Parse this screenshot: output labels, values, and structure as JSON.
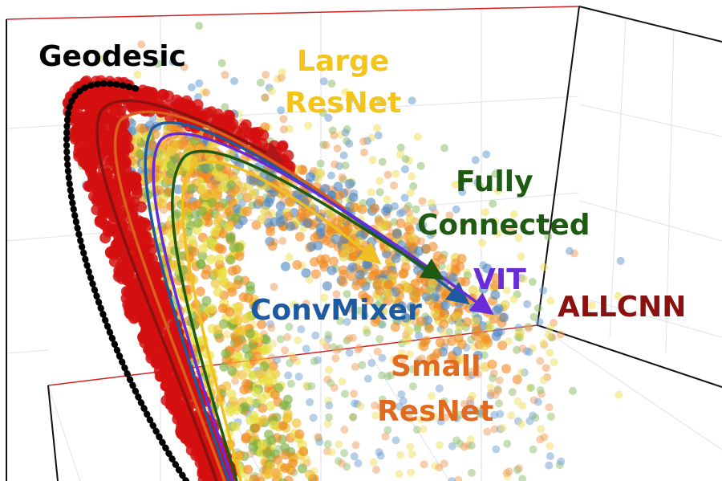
{
  "labels": {
    "geodesic": "Geodesic",
    "large_resnet": [
      "Large",
      "ResNet"
    ],
    "fully_connected": [
      "Fully",
      "Connected"
    ],
    "vit": "VIT",
    "convmixer": "ConvMixer",
    "allcnn": "ALLCNN",
    "small_resnet": [
      "Small",
      "ResNet"
    ]
  }
}
